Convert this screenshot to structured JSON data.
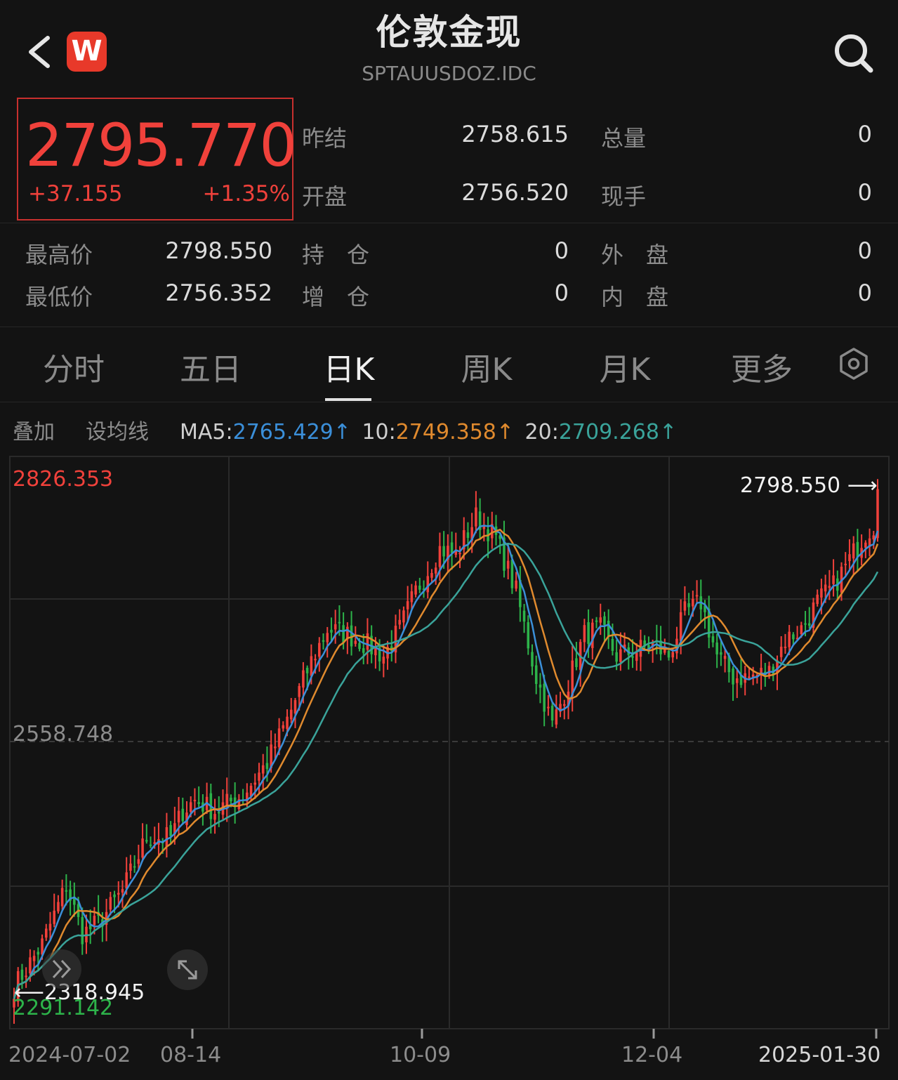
{
  "header": {
    "title": "伦敦金现",
    "subtitle": "SPTAUUSDOZ.IDC",
    "logo_text": "W"
  },
  "quote": {
    "price": "2795.770",
    "change": "+37.155",
    "change_pct": "+1.35%",
    "color_up": "#f0413b",
    "color_down": "#2db34a"
  },
  "stats": {
    "prev_settle_label": "昨结",
    "prev_settle": "2758.615",
    "open_label": "开盘",
    "open": "2756.520",
    "total_vol_label": "总量",
    "total_vol": "0",
    "current_hand_label": "现手",
    "current_hand": "0",
    "high_label": "最高价",
    "high": "2798.550",
    "low_label": "最低价",
    "low": "2756.352",
    "open_interest_label": "持　仓",
    "open_interest": "0",
    "oi_change_label": "增　仓",
    "oi_change": "0",
    "outer_label": "外　盘",
    "outer": "0",
    "inner_label": "内　盘",
    "inner": "0"
  },
  "tabs": [
    "分时",
    "五日",
    "日K",
    "周K",
    "月K",
    "更多"
  ],
  "active_tab": "日K",
  "ma_row": {
    "overlay_label": "叠加",
    "set_ma_label": "设均线",
    "ma5_label": "MA5:",
    "ma5_value": "2765.429↑",
    "ma5_color": "#3b8fd9",
    "ma10_label": "10:",
    "ma10_value": "2749.358↑",
    "ma10_color": "#e08a2e",
    "ma20_label": "20:",
    "ma20_value": "2709.268↑",
    "ma20_color": "#3aa39a"
  },
  "chart_data": {
    "type": "candlestick",
    "y_top_label": "2826.353",
    "y_mid_label": "2558.748",
    "y_bottom_label": "2291.142",
    "ylim": [
      2291.142,
      2826.353
    ],
    "max_annotation": "2798.550",
    "min_annotation": "2318.945",
    "x_labels": [
      "2024-07-02",
      "08-14",
      "10-09",
      "12-04",
      "2025-01-30"
    ],
    "anchors": [
      [
        0,
        2330
      ],
      [
        7,
        2370
      ],
      [
        13,
        2425
      ],
      [
        17,
        2380
      ],
      [
        21,
        2390
      ],
      [
        27,
        2420
      ],
      [
        33,
        2470
      ],
      [
        39,
        2470
      ],
      [
        42,
        2495
      ],
      [
        45,
        2505
      ],
      [
        50,
        2495
      ],
      [
        57,
        2510
      ],
      [
        63,
        2540
      ],
      [
        68,
        2580
      ],
      [
        74,
        2635
      ],
      [
        78,
        2665
      ],
      [
        83,
        2660
      ],
      [
        88,
        2650
      ],
      [
        92,
        2640
      ],
      [
        96,
        2665
      ],
      [
        100,
        2700
      ],
      [
        106,
        2740
      ],
      [
        110,
        2735
      ],
      [
        115,
        2770
      ],
      [
        120,
        2750
      ],
      [
        125,
        2700
      ],
      [
        130,
        2620
      ],
      [
        134,
        2575
      ],
      [
        138,
        2615
      ],
      [
        142,
        2660
      ],
      [
        146,
        2665
      ],
      [
        150,
        2640
      ],
      [
        155,
        2645
      ],
      [
        159,
        2650
      ],
      [
        163,
        2640
      ],
      [
        167,
        2680
      ],
      [
        171,
        2690
      ],
      [
        175,
        2640
      ],
      [
        179,
        2620
      ],
      [
        183,
        2620
      ],
      [
        188,
        2625
      ],
      [
        192,
        2655
      ],
      [
        196,
        2665
      ],
      [
        200,
        2690
      ],
      [
        204,
        2705
      ],
      [
        208,
        2730
      ],
      [
        212,
        2755
      ],
      [
        215,
        2765
      ]
    ]
  }
}
